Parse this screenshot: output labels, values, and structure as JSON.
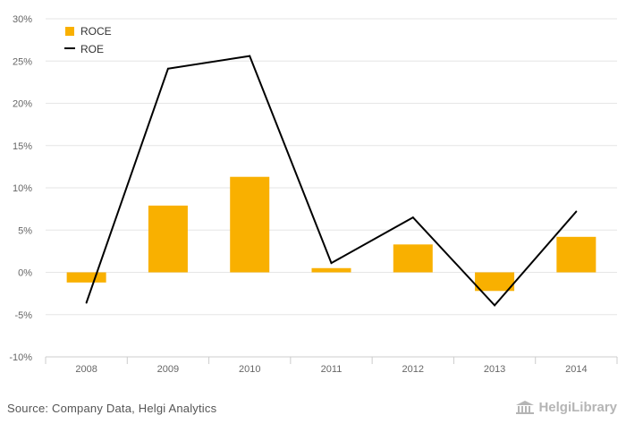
{
  "chart_data": {
    "type": "bar",
    "categories": [
      "2008",
      "2009",
      "2010",
      "2011",
      "2012",
      "2013",
      "2014"
    ],
    "series": [
      {
        "name": "ROCE",
        "type": "bar",
        "color": "#F9B000",
        "values": [
          -1.2,
          7.9,
          11.3,
          0.5,
          3.3,
          -2.2,
          4.2
        ]
      },
      {
        "name": "ROE",
        "type": "line",
        "color": "#000000",
        "values": [
          -3.6,
          24.1,
          25.6,
          1.1,
          6.5,
          -3.9,
          7.2
        ]
      }
    ],
    "ylim": [
      -10,
      30
    ],
    "yticks": [
      -10,
      -5,
      0,
      5,
      10,
      15,
      20,
      25,
      30
    ],
    "ytick_format": "percent",
    "grid": true,
    "legend": "top-left"
  },
  "footer": {
    "source": "Source: Company Data, Helgi Analytics",
    "brand": "HelgiLibrary"
  },
  "brand_icon": "library-building-icon"
}
